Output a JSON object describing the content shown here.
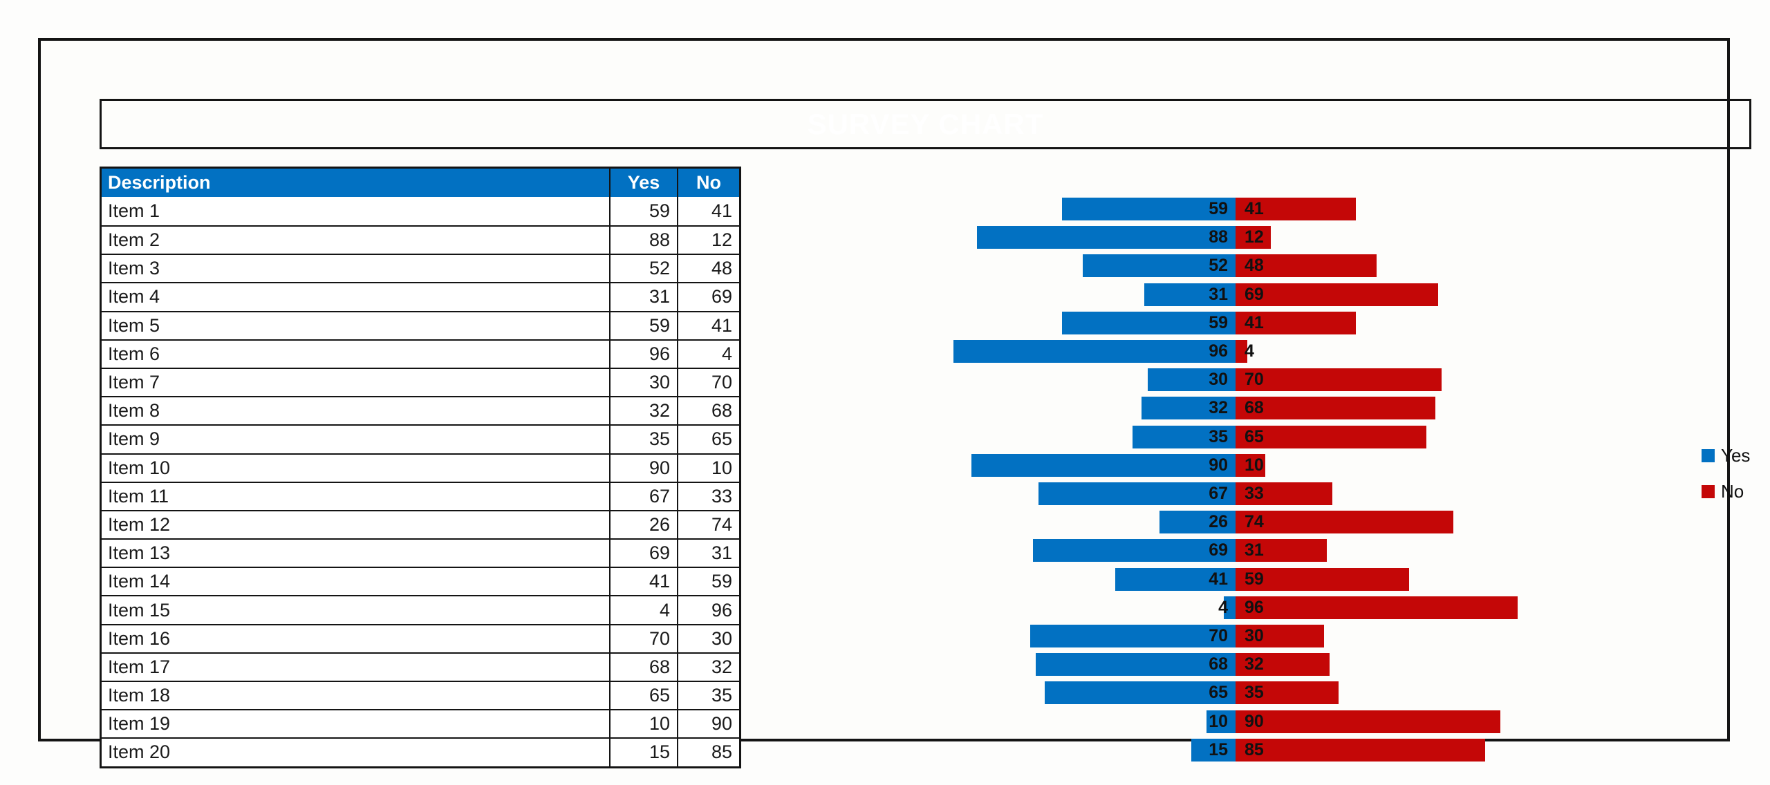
{
  "title": "SURVEY CHART",
  "colors": {
    "yes_blue": "#0271C2",
    "no_red": "#C40707",
    "border_black": "#141414",
    "header_text": "#FFFFFF",
    "label_text": "#111111"
  },
  "table": {
    "headers": {
      "description": "Description",
      "yes": "Yes",
      "no": "No"
    },
    "rows": [
      {
        "label": "Item 1",
        "yes": 59,
        "no": 41
      },
      {
        "label": "Item 2",
        "yes": 88,
        "no": 12
      },
      {
        "label": "Item 3",
        "yes": 52,
        "no": 48
      },
      {
        "label": "Item 4",
        "yes": 31,
        "no": 69
      },
      {
        "label": "Item 5",
        "yes": 59,
        "no": 41
      },
      {
        "label": "Item 6",
        "yes": 96,
        "no": 4
      },
      {
        "label": "Item 7",
        "yes": 30,
        "no": 70
      },
      {
        "label": "Item 8",
        "yes": 32,
        "no": 68
      },
      {
        "label": "Item 9",
        "yes": 35,
        "no": 65
      },
      {
        "label": "Item 10",
        "yes": 90,
        "no": 10
      },
      {
        "label": "Item 11",
        "yes": 67,
        "no": 33
      },
      {
        "label": "Item 12",
        "yes": 26,
        "no": 74
      },
      {
        "label": "Item 13",
        "yes": 69,
        "no": 31
      },
      {
        "label": "Item 14",
        "yes": 41,
        "no": 59
      },
      {
        "label": "Item 15",
        "yes": 4,
        "no": 96
      },
      {
        "label": "Item 16",
        "yes": 70,
        "no": 30
      },
      {
        "label": "Item 17",
        "yes": 68,
        "no": 32
      },
      {
        "label": "Item 18",
        "yes": 65,
        "no": 35
      },
      {
        "label": "Item 19",
        "yes": 10,
        "no": 90
      },
      {
        "label": "Item 20",
        "yes": 15,
        "no": 85
      }
    ]
  },
  "chart_data": {
    "type": "bar",
    "variant": "diverging-horizontal",
    "title": "SURVEY CHART",
    "categories": [
      "Item 1",
      "Item 2",
      "Item 3",
      "Item 4",
      "Item 5",
      "Item 6",
      "Item 7",
      "Item 8",
      "Item 9",
      "Item 10",
      "Item 11",
      "Item 12",
      "Item 13",
      "Item 14",
      "Item 15",
      "Item 16",
      "Item 17",
      "Item 18",
      "Item 19",
      "Item 20"
    ],
    "series": [
      {
        "name": "Yes",
        "color": "#0271C2",
        "direction": "left",
        "values": [
          59,
          88,
          52,
          31,
          59,
          96,
          30,
          32,
          35,
          90,
          67,
          26,
          69,
          41,
          4,
          70,
          68,
          65,
          10,
          15
        ]
      },
      {
        "name": "No",
        "color": "#C40707",
        "direction": "right",
        "values": [
          41,
          12,
          48,
          69,
          41,
          4,
          70,
          68,
          65,
          10,
          33,
          74,
          31,
          59,
          96,
          30,
          32,
          35,
          90,
          85
        ]
      }
    ],
    "value_range_per_side": [
      0,
      100
    ],
    "data_labels": true,
    "axes_visible": false,
    "grid": false,
    "legend_position": "right"
  },
  "legend": {
    "items": [
      {
        "label": "Yes",
        "color": "#0271C2"
      },
      {
        "label": "No",
        "color": "#C40707"
      }
    ]
  }
}
